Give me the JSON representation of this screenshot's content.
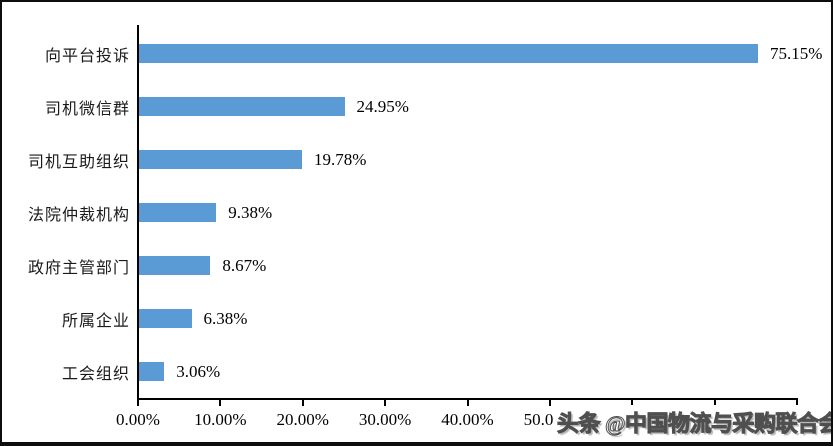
{
  "watermark": {
    "text": "头条 @中国物流与采购联合会"
  },
  "chart_data": {
    "type": "bar",
    "orientation": "horizontal",
    "title": "",
    "xlabel": "",
    "ylabel": "",
    "categories": [
      "向平台投诉",
      "司机微信群",
      "司机互助组织",
      "法院仲裁机构",
      "政府主管部门",
      "所属企业",
      "工会组织"
    ],
    "values": [
      75.15,
      24.95,
      19.78,
      9.38,
      8.67,
      6.38,
      3.06
    ],
    "value_labels": [
      "75.15%",
      "24.95%",
      "19.78%",
      "9.38%",
      "8.67%",
      "6.38%",
      "3.06%"
    ],
    "xlim": [
      0,
      80
    ],
    "x_ticks": [
      0,
      10,
      20,
      30,
      40,
      50,
      60,
      70,
      80
    ],
    "x_tick_labels": [
      "0.00%",
      "10.00%",
      "20.00%",
      "30.00%",
      "40.00%",
      "50.00%",
      "60.00%",
      "70.00%",
      "80.00%"
    ],
    "grid": false,
    "legend": false,
    "bar_color": "#5B9BD5",
    "axis_color": "#000000"
  }
}
